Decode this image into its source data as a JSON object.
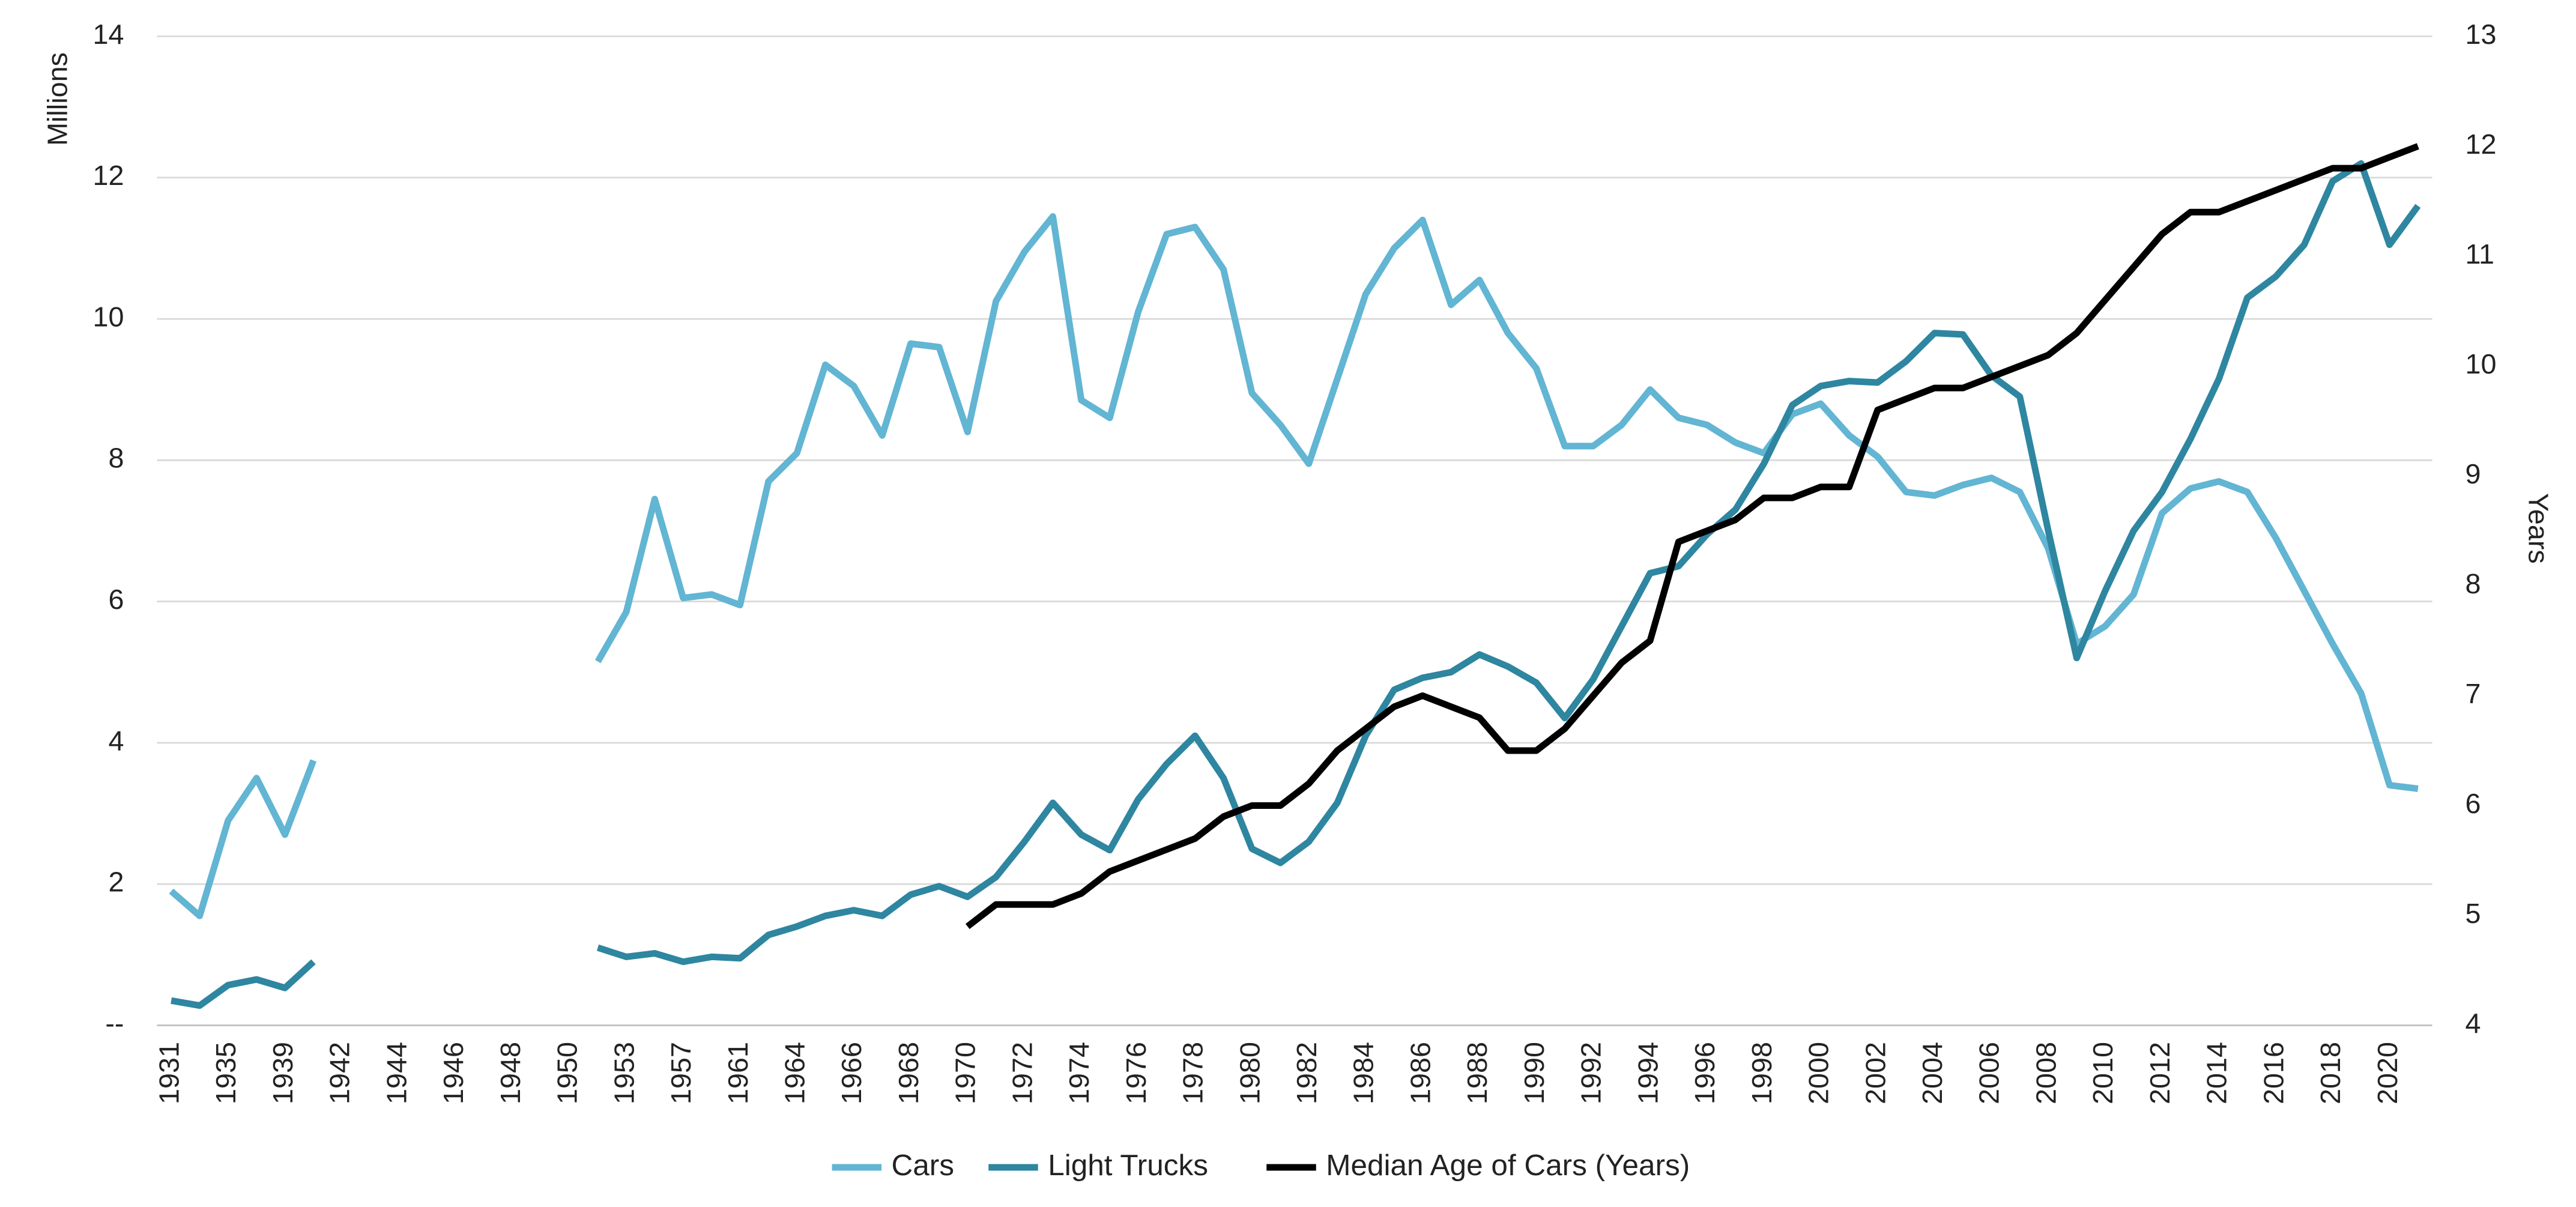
{
  "chart_data": {
    "type": "line",
    "y_label": "Millions",
    "y2_label": "Years",
    "categories": [
      "1931",
      null,
      "1935",
      null,
      "1939",
      null,
      "1942",
      null,
      "1944",
      null,
      "1946",
      null,
      "1948",
      null,
      "1950",
      null,
      "1953",
      null,
      "1957",
      null,
      "1961",
      null,
      "1964",
      null,
      "1966",
      null,
      "1968",
      null,
      "1970",
      null,
      "1972",
      null,
      "1974",
      null,
      "1976",
      null,
      "1978",
      null,
      "1980",
      null,
      "1982",
      null,
      "1984",
      null,
      "1986",
      null,
      "1988",
      null,
      "1990",
      null,
      "1992",
      null,
      "1994",
      null,
      "1996",
      null,
      "1998",
      null,
      "2000",
      null,
      "2002",
      null,
      "2004",
      null,
      "2006",
      null,
      "2008",
      null,
      "2010",
      null,
      "2012",
      null,
      "2014",
      null,
      "2016",
      null,
      "2018",
      null,
      "2020",
      null
    ],
    "series": [
      {
        "name": "Cars",
        "color": "#62b5d3",
        "values": [
          1.9,
          1.55,
          2.9,
          3.5,
          2.7,
          3.75,
          null,
          null,
          null,
          null,
          null,
          null,
          null,
          null,
          null,
          5.15,
          5.85,
          7.45,
          6.05,
          6.1,
          5.95,
          7.7,
          8.1,
          9.35,
          9.05,
          8.35,
          9.65,
          9.6,
          8.4,
          10.25,
          10.95,
          11.45,
          8.85,
          8.6,
          10.1,
          11.2,
          11.3,
          10.7,
          8.95,
          8.5,
          7.95,
          9.15,
          10.35,
          11.0,
          11.4,
          10.2,
          10.55,
          9.8,
          9.3,
          8.2,
          8.2,
          8.5,
          9.0,
          8.6,
          8.5,
          8.25,
          8.1,
          8.65,
          8.8,
          8.35,
          8.05,
          7.55,
          7.5,
          7.65,
          7.75,
          7.55,
          6.75,
          5.4,
          5.65,
          6.1,
          7.25,
          7.6,
          7.7,
          7.55,
          6.9,
          6.15,
          5.4,
          4.7,
          3.4,
          3.35
        ]
      },
      {
        "name": "Light Trucks",
        "color": "#2e86a0",
        "values": [
          0.35,
          0.28,
          0.57,
          0.65,
          0.53,
          0.9,
          null,
          null,
          null,
          null,
          null,
          null,
          null,
          null,
          null,
          1.1,
          0.97,
          1.02,
          0.9,
          0.97,
          0.95,
          1.28,
          1.4,
          1.55,
          1.63,
          1.55,
          1.85,
          1.97,
          1.82,
          2.1,
          2.6,
          3.15,
          2.7,
          2.48,
          3.2,
          3.7,
          4.1,
          3.5,
          2.5,
          2.3,
          2.6,
          3.15,
          4.1,
          4.75,
          4.92,
          5.0,
          5.25,
          5.08,
          4.85,
          4.35,
          4.9,
          5.65,
          6.4,
          6.5,
          6.95,
          7.3,
          7.95,
          8.78,
          9.05,
          9.12,
          9.1,
          9.4,
          9.8,
          9.78,
          9.2,
          8.9,
          7.0,
          5.2,
          6.15,
          7.0,
          7.55,
          8.3,
          9.15,
          10.3,
          10.6,
          11.05,
          11.95,
          12.2,
          11.05,
          11.6
        ]
      },
      {
        "name": "Median Age of Cars (Years)",
        "color": "#000000",
        "axis": "y2",
        "values": [
          null,
          null,
          null,
          null,
          null,
          null,
          null,
          null,
          null,
          null,
          null,
          null,
          null,
          null,
          null,
          null,
          null,
          null,
          null,
          null,
          null,
          null,
          null,
          null,
          null,
          null,
          null,
          null,
          4.9,
          5.1,
          5.1,
          5.1,
          5.2,
          5.4,
          5.5,
          5.6,
          5.7,
          5.9,
          6.0,
          6.0,
          6.2,
          6.5,
          6.7,
          6.9,
          7.0,
          6.9,
          6.8,
          6.5,
          6.5,
          6.7,
          7.0,
          7.3,
          7.5,
          8.4,
          8.5,
          8.6,
          8.8,
          8.8,
          8.9,
          8.9,
          9.6,
          9.7,
          9.8,
          9.8,
          9.9,
          10.0,
          10.1,
          10.3,
          10.6,
          10.9,
          11.2,
          11.4,
          11.4,
          11.5,
          11.6,
          11.7,
          11.8,
          11.8,
          11.9,
          12.0
        ]
      }
    ],
    "ylim": [
      0,
      14
    ],
    "yticks": [
      {
        "value": 0,
        "label": "--"
      },
      2,
      4,
      6,
      8,
      10,
      12,
      14
    ],
    "y2lim": [
      4,
      13
    ],
    "y2ticks": [
      4,
      5,
      6,
      7,
      8,
      9,
      10,
      11,
      12,
      13
    ],
    "grid": true,
    "legend": "bottom"
  }
}
